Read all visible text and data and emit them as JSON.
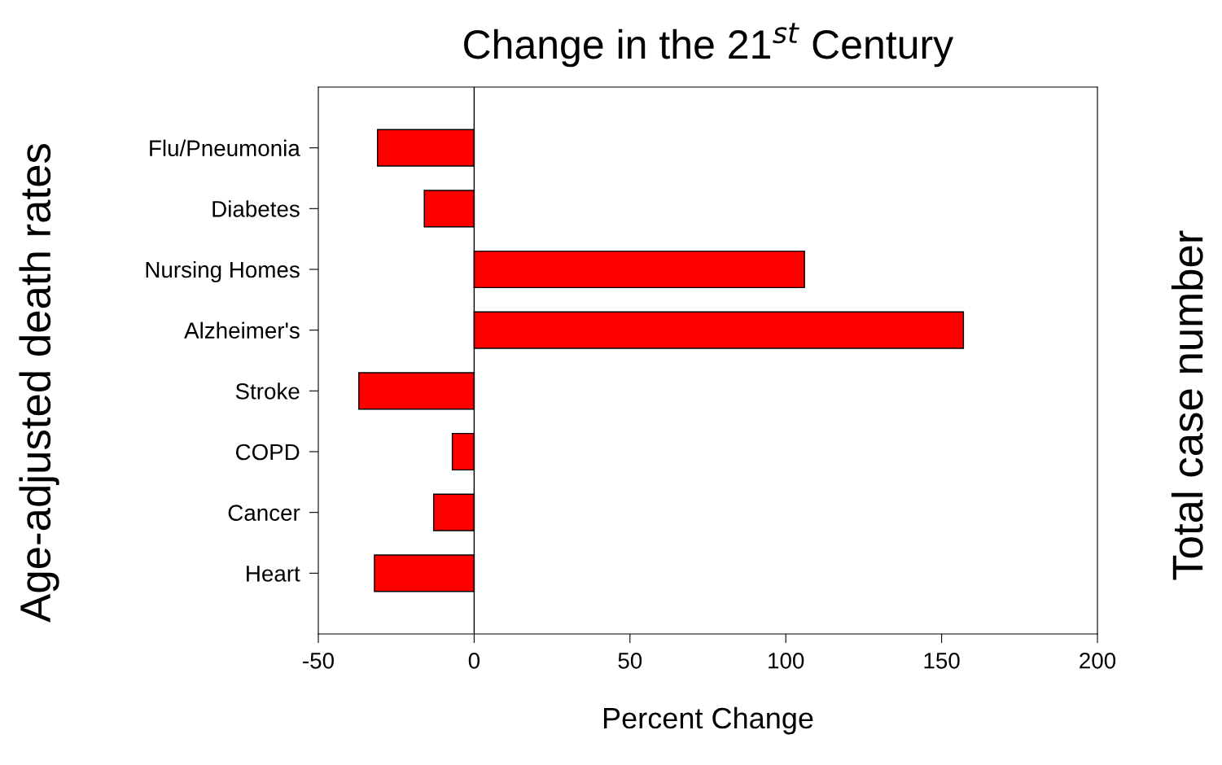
{
  "chart_data": {
    "type": "bar",
    "orientation": "horizontal",
    "title": "Change in the 21$^{st}$ Century",
    "xlabel": "Percent Change",
    "ylabel": "Age-adjusted death rates",
    "y2label": "Total case number",
    "categories": [
      "Flu/Pneumonia",
      "Diabetes",
      "Nursing Homes",
      "Alzheimer's",
      "Stroke",
      "COPD",
      "Cancer",
      "Heart"
    ],
    "values": [
      -31,
      -16,
      106,
      157,
      -37,
      -7,
      -13,
      -32
    ],
    "color": "#ff0000",
    "xlim": [
      -50,
      200
    ],
    "xticks": [
      {
        "value": -50,
        "label": "-50"
      },
      0,
      50,
      100,
      150,
      200
    ],
    "ref_lines": [
      {
        "axis": "x",
        "value": 0,
        "color": "#000000"
      }
    ],
    "grid": false,
    "legend": false
  }
}
